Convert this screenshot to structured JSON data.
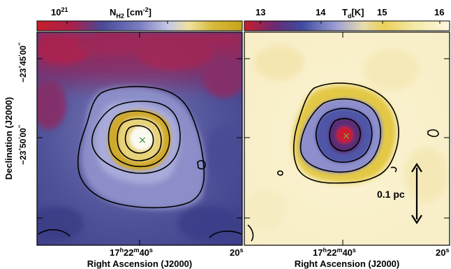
{
  "left_panel": {
    "colorbar_label_main": "N",
    "colorbar_label_sub": "H2",
    "colorbar_label_units": " [cm",
    "colorbar_label_exp": "-2",
    "colorbar_label_close": "]",
    "colorbar_tick_base": "10",
    "colorbar_tick_exp": "21",
    "colormap": [
      "#c81e2d",
      "#a5214c",
      "#6a2a73",
      "#4a4a99",
      "#7a7cc0",
      "#c6c8e6",
      "#efe2a0",
      "#d7b93a",
      "#c6a41b"
    ]
  },
  "right_panel": {
    "colorbar_ticks": [
      "13",
      "14",
      "15",
      "16"
    ],
    "colorbar_label_main": "T",
    "colorbar_label_sub": "d",
    "colorbar_label_units": "[K]",
    "colormap": [
      "#c81e2d",
      "#6a2a73",
      "#3e4aa0",
      "#9e9fd3",
      "#e8dcae",
      "#ecd15a",
      "#f3e8a3",
      "#fdf7df"
    ],
    "scalebar_label": "0.1 pc"
  },
  "axes": {
    "ylabel": "Declination (J2000)",
    "yticks": [
      {
        "deg": "−23",
        "deg_sym": "°",
        "min": "45",
        "min_sym": "'",
        "sec": "00",
        "sec_sym": "''"
      },
      {
        "deg": "−23",
        "deg_sym": "°",
        "min": "50",
        "min_sym": "'",
        "sec": "00",
        "sec_sym": "''"
      }
    ],
    "xlabel": "Right Ascension (J2000)",
    "xtick_main": {
      "hours": "17",
      "h": "h",
      "min": "22",
      "m": "m",
      "sec": "40",
      "s": "s"
    },
    "xtick_right": {
      "sec": "20",
      "s": "s"
    }
  },
  "marker": "×"
}
